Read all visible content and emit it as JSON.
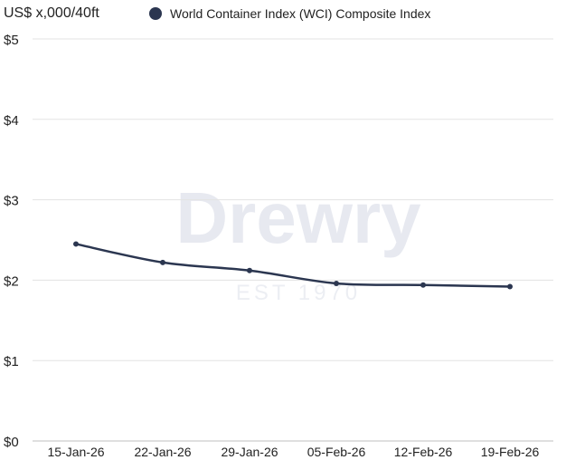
{
  "unit_label": "US$ x,000/40ft",
  "legend": {
    "label": "World Container Index (WCI) Composite Index",
    "color": "#2b3650"
  },
  "watermark": {
    "brand": "Drewry",
    "tagline": "EST 1970"
  },
  "chart_data": {
    "type": "line",
    "title": "",
    "xlabel": "",
    "ylabel": "US$ x,000/40ft",
    "categories": [
      "15-Jan-26",
      "22-Jan-26",
      "29-Jan-26",
      "05-Feb-26",
      "12-Feb-26",
      "19-Feb-26"
    ],
    "series": [
      {
        "name": "World Container Index (WCI) Composite Index",
        "values": [
          2.45,
          2.22,
          2.12,
          1.96,
          1.94,
          1.92
        ],
        "color": "#2b3650"
      }
    ],
    "ylim": [
      0,
      5
    ],
    "yticks": [
      0,
      1,
      2,
      3,
      4,
      5
    ],
    "ytick_labels": [
      "$0",
      "$1",
      "$2",
      "$3",
      "$4",
      "$5"
    ],
    "grid": true,
    "legend_position": "top"
  }
}
